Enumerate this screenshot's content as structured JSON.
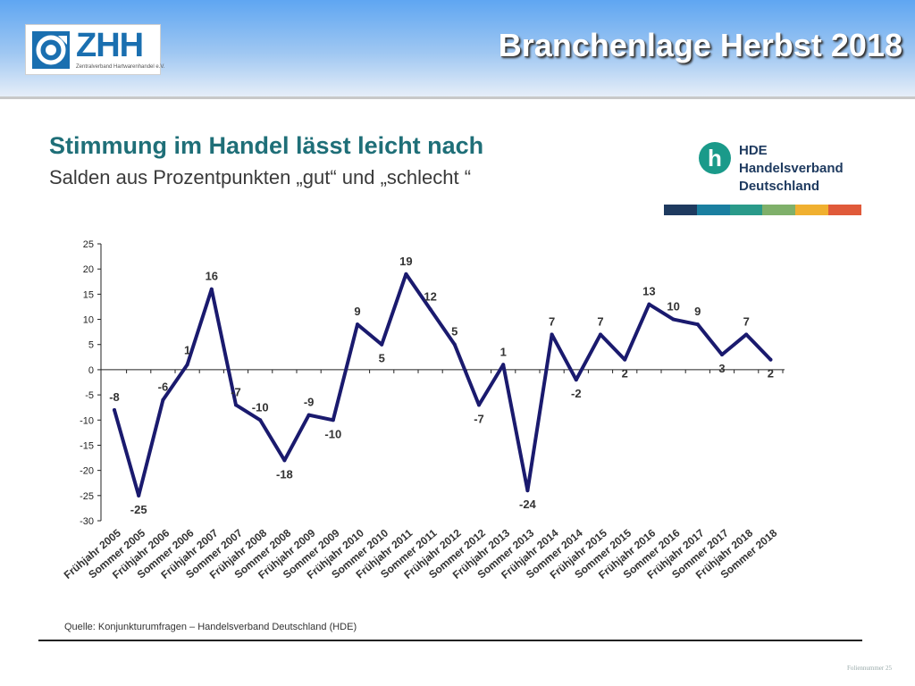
{
  "header": {
    "title": "Branchenlage Herbst 2018"
  },
  "zhh_logo": {
    "word": "ZHH",
    "subtitle": "Zentralverband Hartwarenhandel e.V."
  },
  "hde_logo": {
    "letter": "h",
    "line1": "HDE",
    "line2": "Handelsverband",
    "line3": "Deutschland",
    "stripe_colors": [
      "#1e3a5f",
      "#1a7fa0",
      "#2a9a8a",
      "#7fb06a",
      "#f0b030",
      "#e05a3a"
    ]
  },
  "chart_title": "Stimmung im Handel lässt leicht nach",
  "chart_subtitle": "Salden aus Prozentpunkten „gut“ und „schlecht “",
  "source": "Quelle: Konjunkturumfragen – Handelsverband Deutschland (HDE)",
  "footer": "Foliennummer 25",
  "chart_data": {
    "type": "line",
    "title": "Stimmung im Handel lässt leicht nach",
    "subtitle": "Salden aus Prozentpunkten „gut“ und „schlecht “",
    "ylim": [
      -30,
      25
    ],
    "yticks": [
      "25",
      "20",
      "15",
      "10",
      "5",
      "0",
      "-5",
      "-10",
      "-15",
      "-20",
      "-25",
      "-30"
    ],
    "grid": false,
    "line_color": "#1a1a6e",
    "categories": [
      "Frühjahr 2005",
      "Sommer 2005",
      "Frühjahr 2006",
      "Sommer 2006",
      "Frühjahr 2007",
      "Sommer 2007",
      "Frühjahr 2008",
      "Sommer 2008",
      "Frühjahr 2009",
      "Sommer 2009",
      "Frühjahr 2010",
      "Sommer 2010",
      "Frühjahr 2011",
      "Sommer 2011",
      "Frühjahr 2012",
      "Sommer 2012",
      "Frühjahr 2013",
      "Sommer 2013",
      "Frühjahr 2014",
      "Sommer 2014",
      "Frühjahr 2015",
      "Sommer 2015",
      "Frühjahr 2016",
      "Sommer 2016",
      "Frühjahr 2017",
      "Sommer 2017",
      "Frühjahr 2018",
      "Sommer 2018"
    ],
    "values": [
      -8,
      -25,
      -6,
      1,
      16,
      -7,
      -10,
      -18,
      -9,
      -10,
      9,
      5,
      19,
      12,
      5,
      -7,
      1,
      -24,
      7,
      -2,
      7,
      2,
      13,
      10,
      9,
      3,
      7,
      2
    ],
    "data_labels": [
      "-8",
      "-25",
      "-6",
      "1",
      "16",
      "-7",
      "-10",
      "-18",
      "-9",
      "-10",
      "9",
      "5",
      "19",
      "12",
      "5",
      "-7",
      "1",
      "-24",
      "7",
      "-2",
      "7",
      "2",
      "13",
      "10",
      "9",
      "3",
      "7",
      "2"
    ]
  }
}
